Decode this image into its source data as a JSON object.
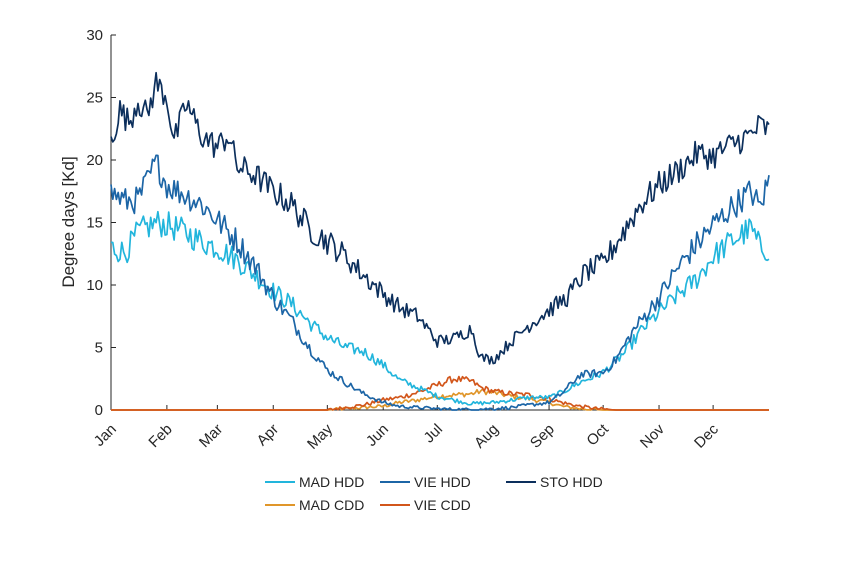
{
  "chart_data": {
    "type": "line",
    "ylabel": "Degree days [Kd]",
    "xlabel": "",
    "title": "",
    "ylim": [
      0,
      30
    ],
    "yticks": [
      0,
      5,
      10,
      15,
      20,
      25,
      30
    ],
    "xlim": [
      0,
      365
    ],
    "x_ticks": [
      {
        "label": "Jan",
        "day": 0
      },
      {
        "label": "Feb",
        "day": 31
      },
      {
        "label": "Mar",
        "day": 59
      },
      {
        "label": "Apr",
        "day": 90
      },
      {
        "label": "May",
        "day": 120
      },
      {
        "label": "Jun",
        "day": 151
      },
      {
        "label": "Jul",
        "day": 181
      },
      {
        "label": "Aug",
        "day": 212
      },
      {
        "label": "Sep",
        "day": 243
      },
      {
        "label": "Oct",
        "day": 273
      },
      {
        "label": "Nov",
        "day": 304
      },
      {
        "label": "Dec",
        "day": 334
      }
    ],
    "grid": false,
    "legend_position": "bottom",
    "series": [
      {
        "name": "MAD HDD",
        "color": "#22b5dc",
        "points": [
          [
            0,
            13.0
          ],
          [
            8,
            12.6
          ],
          [
            15,
            14.2
          ],
          [
            25,
            15.0
          ],
          [
            31,
            14.8
          ],
          [
            40,
            14.3
          ],
          [
            50,
            13.5
          ],
          [
            59,
            13.0
          ],
          [
            70,
            12.0
          ],
          [
            80,
            10.8
          ],
          [
            90,
            9.5
          ],
          [
            100,
            8.5
          ],
          [
            110,
            7.0
          ],
          [
            120,
            5.8
          ],
          [
            130,
            5.0
          ],
          [
            140,
            4.7
          ],
          [
            151,
            3.6
          ],
          [
            160,
            2.4
          ],
          [
            170,
            1.8
          ],
          [
            181,
            1.1
          ],
          [
            190,
            0.8
          ],
          [
            200,
            0.5
          ],
          [
            212,
            0.6
          ],
          [
            222,
            0.8
          ],
          [
            232,
            1.0
          ],
          [
            243,
            1.0
          ],
          [
            250,
            1.4
          ],
          [
            260,
            2.2
          ],
          [
            273,
            3.0
          ],
          [
            285,
            4.6
          ],
          [
            295,
            6.5
          ],
          [
            304,
            7.8
          ],
          [
            315,
            9.3
          ],
          [
            325,
            10.5
          ],
          [
            334,
            12.3
          ],
          [
            345,
            13.6
          ],
          [
            355,
            14.5
          ],
          [
            360,
            13.0
          ],
          [
            365,
            12.8
          ]
        ]
      },
      {
        "name": "VIE HDD",
        "color": "#1c65a6",
        "points": [
          [
            0,
            17.4
          ],
          [
            8,
            16.7
          ],
          [
            15,
            16.8
          ],
          [
            25,
            19.8
          ],
          [
            31,
            18.0
          ],
          [
            40,
            17.3
          ],
          [
            50,
            16.5
          ],
          [
            59,
            15.2
          ],
          [
            70,
            13.5
          ],
          [
            80,
            11.5
          ],
          [
            90,
            9.0
          ],
          [
            100,
            7.2
          ],
          [
            110,
            5.0
          ],
          [
            120,
            3.2
          ],
          [
            130,
            2.2
          ],
          [
            140,
            1.3
          ],
          [
            151,
            0.6
          ],
          [
            160,
            0.3
          ],
          [
            170,
            0.2
          ],
          [
            181,
            0.1
          ],
          [
            190,
            0.05
          ],
          [
            200,
            0.05
          ],
          [
            212,
            0.1
          ],
          [
            222,
            0.2
          ],
          [
            232,
            0.4
          ],
          [
            243,
            0.6
          ],
          [
            250,
            1.3
          ],
          [
            260,
            2.8
          ],
          [
            273,
            3.0
          ],
          [
            280,
            4.0
          ],
          [
            290,
            6.4
          ],
          [
            304,
            9.0
          ],
          [
            315,
            11.5
          ],
          [
            325,
            13.3
          ],
          [
            334,
            14.8
          ],
          [
            345,
            16.3
          ],
          [
            355,
            17.5
          ],
          [
            360,
            16.2
          ],
          [
            365,
            18.5
          ]
        ]
      },
      {
        "name": "STO HDD",
        "color": "#0c2f5c",
        "points": [
          [
            0,
            21.5
          ],
          [
            5,
            24.0
          ],
          [
            10,
            23.0
          ],
          [
            15,
            24.8
          ],
          [
            20,
            23.5
          ],
          [
            25,
            26.2
          ],
          [
            31,
            25.0
          ],
          [
            35,
            21.5
          ],
          [
            42,
            24.5
          ],
          [
            50,
            22.0
          ],
          [
            59,
            21.0
          ],
          [
            65,
            22.0
          ],
          [
            70,
            19.5
          ],
          [
            80,
            18.8
          ],
          [
            90,
            17.5
          ],
          [
            100,
            16.5
          ],
          [
            110,
            14.5
          ],
          [
            120,
            13.5
          ],
          [
            130,
            12.3
          ],
          [
            140,
            10.8
          ],
          [
            151,
            9.3
          ],
          [
            160,
            8.2
          ],
          [
            170,
            7.5
          ],
          [
            181,
            5.5
          ],
          [
            190,
            5.7
          ],
          [
            200,
            6.5
          ],
          [
            205,
            4.2
          ],
          [
            212,
            4.0
          ],
          [
            222,
            5.5
          ],
          [
            232,
            6.8
          ],
          [
            243,
            8.0
          ],
          [
            253,
            9.0
          ],
          [
            263,
            11.0
          ],
          [
            273,
            11.7
          ],
          [
            283,
            14.0
          ],
          [
            294,
            16.5
          ],
          [
            304,
            18.0
          ],
          [
            315,
            19.2
          ],
          [
            325,
            20.5
          ],
          [
            334,
            20.3
          ],
          [
            345,
            21.3
          ],
          [
            355,
            22.0
          ],
          [
            360,
            22.8
          ],
          [
            365,
            22.3
          ]
        ]
      },
      {
        "name": "MAD CDD",
        "color": "#e0962a",
        "points": [
          [
            0,
            0.0
          ],
          [
            120,
            0.0
          ],
          [
            130,
            0.1
          ],
          [
            140,
            0.2
          ],
          [
            151,
            0.3
          ],
          [
            160,
            0.6
          ],
          [
            170,
            0.8
          ],
          [
            181,
            1.1
          ],
          [
            190,
            1.2
          ],
          [
            200,
            1.3
          ],
          [
            205,
            1.5
          ],
          [
            212,
            1.4
          ],
          [
            222,
            1.1
          ],
          [
            232,
            0.9
          ],
          [
            243,
            0.6
          ],
          [
            250,
            0.3
          ],
          [
            260,
            0.1
          ],
          [
            273,
            0.0
          ],
          [
            365,
            0.0
          ]
        ]
      },
      {
        "name": "VIE CDD",
        "color": "#d2561b",
        "points": [
          [
            0,
            0.0
          ],
          [
            120,
            0.0
          ],
          [
            130,
            0.2
          ],
          [
            140,
            0.4
          ],
          [
            151,
            0.8
          ],
          [
            160,
            1.0
          ],
          [
            170,
            1.4
          ],
          [
            181,
            2.0
          ],
          [
            190,
            2.5
          ],
          [
            200,
            2.3
          ],
          [
            205,
            1.8
          ],
          [
            212,
            1.5
          ],
          [
            222,
            1.3
          ],
          [
            232,
            1.2
          ],
          [
            243,
            0.9
          ],
          [
            250,
            0.6
          ],
          [
            260,
            0.3
          ],
          [
            270,
            0.1
          ],
          [
            280,
            0.0
          ],
          [
            365,
            0.0
          ]
        ]
      }
    ]
  }
}
